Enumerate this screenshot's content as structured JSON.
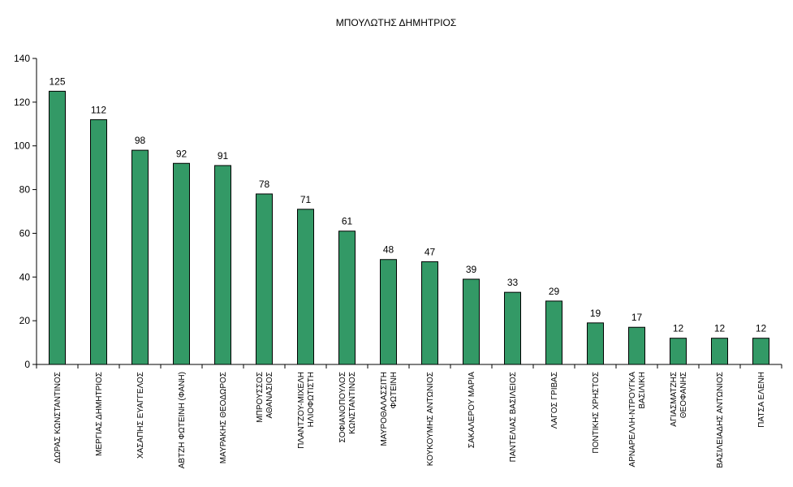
{
  "chart_data": {
    "type": "bar",
    "title": "ΜΠΟΥΛΩΤΗΣ ΔΗΜΗΤΡΙΟΣ",
    "xlabel": "",
    "ylabel": "",
    "ylim": [
      0,
      140
    ],
    "yticks": [
      0,
      20,
      40,
      60,
      80,
      100,
      120,
      140
    ],
    "grid": false,
    "legend": "none",
    "bar_color": "#339966",
    "categories": [
      "ΔΩΡΑΣ ΚΩΝΣΤΑΝΤΙΝΟΣ",
      "ΜΕΡΓΙΑΣ ΔΗΜΗΤΡΙΟΣ",
      "ΧΑΣΑΠΗΣ ΕΥΑΓΓΕΛΟΣ",
      "ΑΒΤΖΗ ΦΩΤΕΙΝΗ (ΦΑΝΗ)",
      "ΜΑΥΡΑΚΗΣ ΘΕΟΔΩΡΟΣ",
      "ΜΠΡΟΥΣΣΟΣ ΑΘΑΝΑΣΙΟΣ",
      "ΠΛΑΝΤΖΟΥ-ΜΙΧΕΛΗ ΗΛΙΟΦΩΤΙΣΤΗ",
      "ΣΟΦΙΑΝΟΠΟΥΛΟΣ ΚΩΝΣΤΑΝΤΙΝΟΣ",
      "ΜΑΥΡΟΘΑΛΑΣΣΙΤΗ ΦΩΤΕΙΝΗ",
      "ΚΟΥΚΟΥΜΗΣ ΑΝΤΩΝΙΟΣ",
      "ΣΑΚΑΛΕΡΟΥ ΜΑΡΙΑ",
      "ΠΑΝΤΕΛΙΑΣ ΒΑΣΙΛΕΙΟΣ",
      "ΛΑΓΟΣ ΓΡΙΒΑΣ",
      "ΠΟΝΤΙΚΗΣ ΧΡΗΣΤΟΣ",
      "ΑΡΝΑΡΕΛΛΗ-ΝΤΡΟΥΓΚΑ ΒΑΣΙΛΙΚΗ",
      "ΑΓΙΑΣΜΑΤΖΗΣ ΘΕΟΦΑΝΗΣ",
      "ΒΑΣΙΛΕΙΑΔΗΣ ΑΝΤΩΝΙΟΣ",
      "ΠΑΤΣΑ ΕΛΕΝΗ"
    ],
    "category_lines": [
      [
        "ΔΩΡΑΣ ΚΩΝΣΤΑΝΤΙΝΟΣ"
      ],
      [
        "ΜΕΡΓΙΑΣ ΔΗΜΗΤΡΙΟΣ"
      ],
      [
        "ΧΑΣΑΠΗΣ ΕΥΑΓΓΕΛΟΣ"
      ],
      [
        "ΑΒΤΖΗ ΦΩΤΕΙΝΗ (ΦΑΝΗ)"
      ],
      [
        "ΜΑΥΡΑΚΗΣ ΘΕΟΔΩΡΟΣ"
      ],
      [
        "ΜΠΡΟΥΣΣΟΣ",
        "ΑΘΑΝΑΣΙΟΣ"
      ],
      [
        "ΠΛΑΝΤΖΟΥ-ΜΙΧΕΛΗ",
        "ΗΛΙΟΦΩΤΙΣΤΗ"
      ],
      [
        "ΣΟΦΙΑΝΟΠΟΥΛΟΣ",
        "ΚΩΝΣΤΑΝΤΙΝΟΣ"
      ],
      [
        "ΜΑΥΡΟΘΑΛΑΣΣΙΤΗ",
        "ΦΩΤΕΙΝΗ"
      ],
      [
        "ΚΟΥΚΟΥΜΗΣ ΑΝΤΩΝΙΟΣ"
      ],
      [
        "ΣΑΚΑΛΕΡΟΥ ΜΑΡΙΑ"
      ],
      [
        "ΠΑΝΤΕΛΙΑΣ ΒΑΣΙΛΕΙΟΣ"
      ],
      [
        "ΛΑΓΟΣ ΓΡΙΒΑΣ"
      ],
      [
        "ΠΟΝΤΙΚΗΣ ΧΡΗΣΤΟΣ"
      ],
      [
        "ΑΡΝΑΡΕΛΛΗ-ΝΤΡΟΥΓΚΑ",
        "ΒΑΣΙΛΙΚΗ"
      ],
      [
        "ΑΓΙΑΣΜΑΤΖΗΣ",
        "ΘΕΟΦΑΝΗΣ"
      ],
      [
        "ΒΑΣΙΛΕΙΑΔΗΣ ΑΝΤΩΝΙΟΣ"
      ],
      [
        "ΠΑΤΣΑ ΕΛΕΝΗ"
      ]
    ],
    "values": [
      125,
      112,
      98,
      92,
      91,
      78,
      71,
      61,
      48,
      47,
      39,
      33,
      29,
      19,
      17,
      12,
      12,
      12
    ]
  }
}
